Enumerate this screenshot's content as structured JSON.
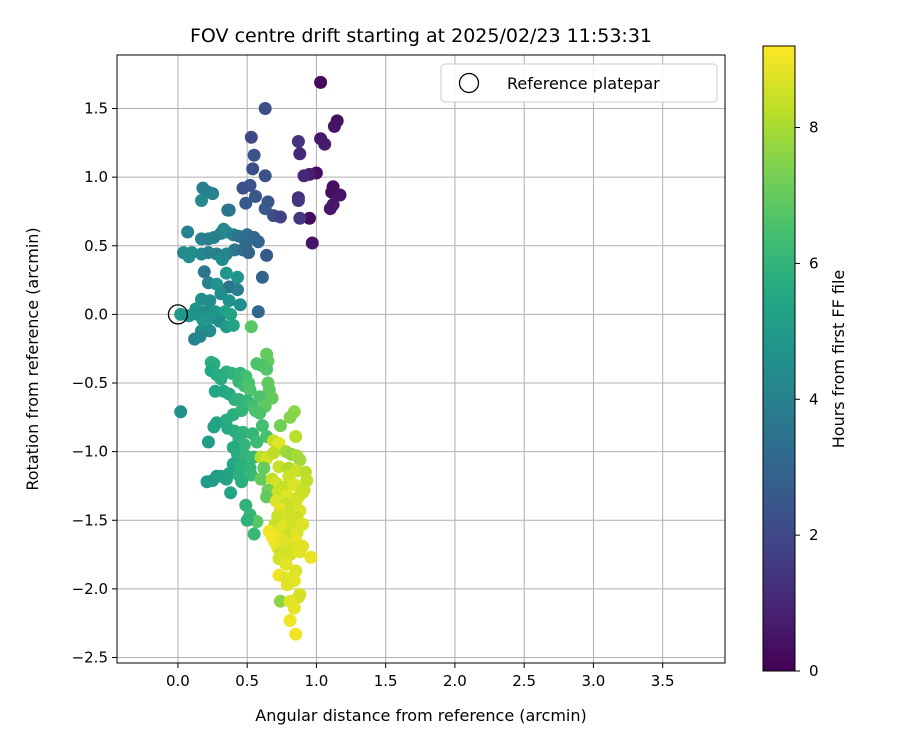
{
  "chart_data": {
    "type": "scatter",
    "title": "FOV centre drift starting at 2025/02/23 11:53:31",
    "xlabel": "Angular distance from reference (arcmin)",
    "ylabel": "Rotation from reference (arcmin)",
    "xlim": [
      -0.44,
      3.95
    ],
    "ylim": [
      -2.54,
      1.89
    ],
    "xticks": [
      "0.0",
      "0.5",
      "1.0",
      "1.5",
      "2.0",
      "2.5",
      "3.0",
      "3.5"
    ],
    "xtick_values": [
      0,
      0.5,
      1.0,
      1.5,
      2.0,
      2.5,
      3.0,
      3.5
    ],
    "yticks": [
      "−2.5",
      "−2.0",
      "−1.5",
      "−1.0",
      "−0.5",
      "0.0",
      "0.5",
      "1.0",
      "1.5"
    ],
    "ytick_values": [
      -2.5,
      -2.0,
      -1.5,
      -1.0,
      -0.5,
      0.0,
      0.5,
      1.0,
      1.5
    ],
    "grid": true,
    "legend": {
      "placement": "top-right",
      "entries": [
        "Reference platepar"
      ]
    },
    "reference_point": {
      "x": 0.0,
      "y": 0.0
    },
    "colorbar": {
      "label": "Hours from first FF file",
      "range": [
        0,
        9.2
      ],
      "ticks": [
        "0",
        "2",
        "4",
        "6",
        "8"
      ],
      "tick_values": [
        0,
        2,
        4,
        6,
        8
      ],
      "colormap": "viridis"
    },
    "points": [
      [
        1.03,
        1.69,
        0.2
      ],
      [
        1.15,
        1.41,
        0.4
      ],
      [
        1.13,
        1.37,
        0.5
      ],
      [
        0.63,
        1.5,
        2.2
      ],
      [
        0.53,
        1.29,
        2.0
      ],
      [
        1.03,
        1.28,
        0.6
      ],
      [
        1.06,
        1.24,
        0.7
      ],
      [
        0.87,
        1.26,
        1.4
      ],
      [
        0.88,
        1.17,
        1.0
      ],
      [
        0.55,
        1.16,
        2.3
      ],
      [
        0.54,
        1.06,
        2.2
      ],
      [
        1.0,
        1.03,
        0.4
      ],
      [
        0.95,
        1.02,
        0.8
      ],
      [
        0.63,
        1.01,
        2.4
      ],
      [
        0.91,
        1.01,
        1.0
      ],
      [
        0.95,
        0.7,
        0.3
      ],
      [
        1.12,
        0.93,
        0.3
      ],
      [
        1.11,
        0.89,
        0.4
      ],
      [
        1.17,
        0.87,
        0.5
      ],
      [
        1.12,
        0.8,
        0.6
      ],
      [
        1.1,
        0.77,
        0.6
      ],
      [
        0.97,
        0.52,
        0.5
      ],
      [
        0.47,
        0.92,
        2.2
      ],
      [
        0.52,
        0.94,
        2.4
      ],
      [
        0.56,
        0.86,
        2.5
      ],
      [
        0.49,
        0.81,
        2.6
      ],
      [
        0.63,
        0.77,
        2.6
      ],
      [
        0.65,
        0.82,
        2.5
      ],
      [
        0.69,
        0.72,
        2.2
      ],
      [
        0.74,
        0.71,
        1.8
      ],
      [
        0.87,
        0.85,
        1.2
      ],
      [
        0.87,
        0.83,
        1.4
      ],
      [
        0.88,
        0.7,
        1.5
      ],
      [
        0.18,
        0.92,
        4.0
      ],
      [
        0.22,
        0.89,
        3.9
      ],
      [
        0.25,
        0.88,
        4.1
      ],
      [
        0.17,
        0.83,
        4.3
      ],
      [
        0.37,
        0.76,
        3.7
      ],
      [
        0.36,
        0.76,
        3.5
      ],
      [
        0.07,
        0.6,
        4.1
      ],
      [
        0.17,
        0.55,
        4.0
      ],
      [
        0.22,
        0.55,
        3.9
      ],
      [
        0.26,
        0.56,
        4.0
      ],
      [
        0.31,
        0.59,
        4.0
      ],
      [
        0.33,
        0.62,
        4.2
      ],
      [
        0.35,
        0.6,
        4.3
      ],
      [
        0.4,
        0.58,
        4.0
      ],
      [
        0.44,
        0.57,
        3.5
      ],
      [
        0.5,
        0.58,
        3.3
      ],
      [
        0.55,
        0.56,
        3.1
      ],
      [
        0.58,
        0.53,
        3.0
      ],
      [
        0.04,
        0.45,
        4.3
      ],
      [
        0.08,
        0.42,
        4.4
      ],
      [
        0.1,
        0.45,
        4.5
      ],
      [
        0.17,
        0.44,
        4.3
      ],
      [
        0.22,
        0.45,
        4.1
      ],
      [
        0.28,
        0.44,
        4.0
      ],
      [
        0.32,
        0.4,
        4.4
      ],
      [
        0.35,
        0.44,
        4.2
      ],
      [
        0.41,
        0.47,
        3.7
      ],
      [
        0.47,
        0.47,
        3.3
      ],
      [
        0.49,
        0.51,
        3.2
      ],
      [
        0.51,
        0.45,
        3.0
      ],
      [
        0.64,
        0.43,
        2.6
      ],
      [
        0.19,
        0.31,
        3.6
      ],
      [
        0.35,
        0.3,
        4.8
      ],
      [
        0.43,
        0.27,
        4.7
      ],
      [
        0.61,
        0.27,
        2.9
      ],
      [
        0.22,
        0.23,
        4.1
      ],
      [
        0.28,
        0.22,
        4.7
      ],
      [
        0.37,
        0.2,
        3.6
      ],
      [
        0.43,
        0.18,
        3.9
      ],
      [
        0.31,
        0.15,
        4.4
      ],
      [
        0.17,
        0.11,
        4.5
      ],
      [
        0.23,
        0.1,
        4.4
      ],
      [
        0.37,
        0.1,
        4.6
      ],
      [
        0.45,
        0.07,
        4.5
      ],
      [
        0.13,
        0.04,
        4.8
      ],
      [
        0.2,
        0.02,
        4.4
      ],
      [
        0.27,
        0.02,
        4.7
      ],
      [
        0.34,
        0.02,
        5.2
      ],
      [
        0.38,
        0.0,
        5.3
      ],
      [
        0.58,
        0.02,
        3.0
      ],
      [
        0.02,
        0.0,
        4.9
      ],
      [
        0.08,
        -0.01,
        4.7
      ],
      [
        0.14,
        0.0,
        4.6
      ],
      [
        0.18,
        -0.04,
        4.8
      ],
      [
        0.23,
        -0.03,
        4.8
      ],
      [
        0.3,
        -0.05,
        4.5
      ],
      [
        0.35,
        -0.09,
        5.0
      ],
      [
        0.4,
        -0.08,
        5.3
      ],
      [
        0.53,
        -0.09,
        6.8
      ],
      [
        0.17,
        -0.12,
        4.6
      ],
      [
        0.23,
        -0.12,
        4.4
      ],
      [
        0.12,
        -0.18,
        4.0
      ],
      [
        0.16,
        -0.16,
        4.2
      ],
      [
        0.64,
        -0.29,
        7.0
      ],
      [
        0.65,
        -0.34,
        7.0
      ],
      [
        0.24,
        -0.35,
        5.9
      ],
      [
        0.26,
        -0.36,
        5.7
      ],
      [
        0.57,
        -0.36,
        6.6
      ],
      [
        0.6,
        -0.37,
        6.6
      ],
      [
        0.64,
        -0.4,
        6.7
      ],
      [
        0.24,
        -0.41,
        5.5
      ],
      [
        0.35,
        -0.42,
        5.8
      ],
      [
        0.39,
        -0.43,
        5.9
      ],
      [
        0.45,
        -0.43,
        6.0
      ],
      [
        0.49,
        -0.45,
        6.4
      ],
      [
        0.28,
        -0.44,
        5.6
      ],
      [
        0.31,
        -0.47,
        5.7
      ],
      [
        0.44,
        -0.49,
        6.1
      ],
      [
        0.48,
        -0.52,
        6.3
      ],
      [
        0.51,
        -0.5,
        6.5
      ],
      [
        0.52,
        -0.55,
        6.6
      ],
      [
        0.66,
        -0.55,
        6.9
      ],
      [
        0.65,
        -0.5,
        6.9
      ],
      [
        0.27,
        -0.56,
        5.4
      ],
      [
        0.33,
        -0.56,
        5.5
      ],
      [
        0.37,
        -0.58,
        5.6
      ],
      [
        0.41,
        -0.62,
        5.8
      ],
      [
        0.44,
        -0.62,
        5.9
      ],
      [
        0.5,
        -0.63,
        6.1
      ],
      [
        0.59,
        -0.6,
        6.6
      ],
      [
        0.68,
        -0.61,
        7.0
      ],
      [
        0.63,
        -0.67,
        6.9
      ],
      [
        0.54,
        -0.67,
        6.4
      ],
      [
        0.56,
        -0.7,
        6.5
      ],
      [
        0.59,
        -0.72,
        6.6
      ],
      [
        0.46,
        -0.7,
        6.0
      ],
      [
        0.4,
        -0.73,
        5.8
      ],
      [
        0.35,
        -0.77,
        5.7
      ],
      [
        0.28,
        -0.79,
        5.4
      ],
      [
        0.84,
        -0.71,
        7.6
      ],
      [
        0.81,
        -0.75,
        7.5
      ],
      [
        0.02,
        -0.71,
        4.6
      ],
      [
        0.36,
        -0.83,
        5.6
      ],
      [
        0.41,
        -0.85,
        5.7
      ],
      [
        0.47,
        -0.86,
        5.9
      ],
      [
        0.54,
        -0.87,
        6.1
      ],
      [
        0.61,
        -0.81,
        6.4
      ],
      [
        0.74,
        -0.81,
        7.2
      ],
      [
        0.26,
        -0.82,
        5.3
      ],
      [
        0.44,
        -0.91,
        5.8
      ],
      [
        0.48,
        -0.95,
        6.0
      ],
      [
        0.57,
        -0.93,
        6.2
      ],
      [
        0.64,
        -0.89,
        6.5
      ],
      [
        0.69,
        -0.92,
        8.4
      ],
      [
        0.73,
        -0.94,
        8.8
      ],
      [
        0.85,
        -0.89,
        8.2
      ],
      [
        0.22,
        -0.93,
        5.1
      ],
      [
        0.4,
        -0.97,
        5.6
      ],
      [
        0.43,
        -1.02,
        5.7
      ],
      [
        0.49,
        -1.03,
        6.0
      ],
      [
        0.55,
        -1.04,
        6.1
      ],
      [
        0.6,
        -1.04,
        8.2
      ],
      [
        0.64,
        -1.05,
        8.6
      ],
      [
        0.69,
        -1.01,
        8.3
      ],
      [
        0.78,
        -1.0,
        7.9
      ],
      [
        0.82,
        -1.02,
        7.7
      ],
      [
        0.86,
        -1.03,
        8.0
      ],
      [
        0.88,
        -1.06,
        7.9
      ],
      [
        0.4,
        -1.09,
        5.5
      ],
      [
        0.46,
        -1.1,
        5.8
      ],
      [
        0.52,
        -1.12,
        6.0
      ],
      [
        0.62,
        -1.12,
        7.0
      ],
      [
        0.73,
        -1.11,
        8.4
      ],
      [
        0.8,
        -1.12,
        8.1
      ],
      [
        0.86,
        -1.14,
        8.5
      ],
      [
        0.92,
        -1.15,
        8.2
      ],
      [
        0.37,
        -1.16,
        5.4
      ],
      [
        0.44,
        -1.17,
        5.8
      ],
      [
        0.53,
        -1.17,
        6.1
      ],
      [
        0.6,
        -1.2,
        7.0
      ],
      [
        0.68,
        -1.2,
        8.4
      ],
      [
        0.8,
        -1.18,
        8.5
      ],
      [
        0.28,
        -1.18,
        5.1
      ],
      [
        0.31,
        -1.18,
        5.2
      ],
      [
        0.35,
        -1.2,
        5.3
      ],
      [
        0.46,
        -1.22,
        5.8
      ],
      [
        0.21,
        -1.22,
        5.0
      ],
      [
        0.25,
        -1.21,
        5.1
      ],
      [
        0.71,
        -1.23,
        8.6
      ],
      [
        0.76,
        -1.26,
        8.4
      ],
      [
        0.84,
        -1.24,
        8.7
      ],
      [
        0.93,
        -1.21,
        8.3
      ],
      [
        0.91,
        -1.28,
        8.4
      ],
      [
        0.65,
        -1.28,
        7.2
      ],
      [
        0.72,
        -1.3,
        8.5
      ],
      [
        0.79,
        -1.32,
        8.8
      ],
      [
        0.87,
        -1.33,
        8.6
      ],
      [
        0.9,
        -1.3,
        8.5
      ],
      [
        0.38,
        -1.3,
        5.4
      ],
      [
        0.64,
        -1.33,
        7.0
      ],
      [
        0.71,
        -1.36,
        8.7
      ],
      [
        0.78,
        -1.38,
        8.4
      ],
      [
        0.85,
        -1.37,
        8.6
      ],
      [
        0.49,
        -1.39,
        5.9
      ],
      [
        0.74,
        -1.42,
        8.9
      ],
      [
        0.81,
        -1.43,
        8.5
      ],
      [
        0.88,
        -1.43,
        8.7
      ],
      [
        0.72,
        -1.47,
        8.5
      ],
      [
        0.79,
        -1.48,
        8.6
      ],
      [
        0.86,
        -1.48,
        8.5
      ],
      [
        0.52,
        -1.46,
        6.0
      ],
      [
        0.57,
        -1.51,
        6.8
      ],
      [
        0.5,
        -1.5,
        5.9
      ],
      [
        0.7,
        -1.53,
        8.4
      ],
      [
        0.76,
        -1.54,
        8.8
      ],
      [
        0.83,
        -1.52,
        8.6
      ],
      [
        0.9,
        -1.53,
        8.7
      ],
      [
        0.66,
        -1.58,
        9.0
      ],
      [
        0.72,
        -1.6,
        8.8
      ],
      [
        0.8,
        -1.6,
        8.5
      ],
      [
        0.86,
        -1.59,
        8.7
      ],
      [
        0.68,
        -1.62,
        9.1
      ],
      [
        0.55,
        -1.6,
        6.1
      ],
      [
        0.7,
        -1.66,
        9.0
      ],
      [
        0.76,
        -1.65,
        8.8
      ],
      [
        0.85,
        -1.65,
        8.9
      ],
      [
        0.72,
        -1.7,
        8.9
      ],
      [
        0.79,
        -1.7,
        8.7
      ],
      [
        0.86,
        -1.7,
        8.7
      ],
      [
        0.9,
        -1.69,
        8.8
      ],
      [
        0.74,
        -1.74,
        8.5
      ],
      [
        0.81,
        -1.75,
        8.6
      ],
      [
        0.88,
        -1.73,
        8.8
      ],
      [
        0.96,
        -1.77,
        8.9
      ],
      [
        0.73,
        -1.78,
        8.6
      ],
      [
        0.78,
        -1.82,
        8.8
      ],
      [
        0.85,
        -1.87,
        8.7
      ],
      [
        0.73,
        -1.9,
        9.0
      ],
      [
        0.78,
        -1.92,
        8.8
      ],
      [
        0.84,
        -1.94,
        8.9
      ],
      [
        0.79,
        -1.97,
        8.8
      ],
      [
        0.88,
        -2.04,
        8.7
      ],
      [
        0.87,
        -2.06,
        8.6
      ],
      [
        0.74,
        -2.09,
        7.6
      ],
      [
        0.81,
        -2.09,
        8.8
      ],
      [
        0.84,
        -2.14,
        8.9
      ],
      [
        0.81,
        -2.23,
        9.0
      ],
      [
        0.85,
        -2.33,
        9.0
      ]
    ]
  }
}
